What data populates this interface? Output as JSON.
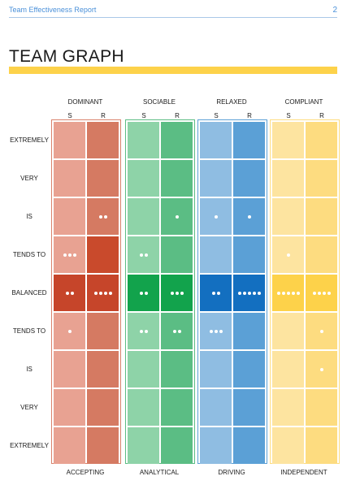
{
  "header": {
    "title": "Team Effectiveness Report",
    "page_number": "2"
  },
  "page_title": "TEAM GRAPH",
  "columns": [
    {
      "name": "DOMINANT",
      "bottom": "ACCEPTING",
      "color_light": "#e8a292",
      "color_dark": "#d57a62",
      "frame": "#d9826b"
    },
    {
      "name": "SOCIABLE",
      "bottom": "ANALYTICAL",
      "color_light": "#8ed3a8",
      "color_dark": "#5bbd84",
      "frame": "#5bbd84"
    },
    {
      "name": "RELAXED",
      "bottom": "DRIVING",
      "color_light": "#8fbde2",
      "color_dark": "#5ba0d6",
      "frame": "#5ba0d6"
    },
    {
      "name": "COMPLIANT",
      "bottom": "INDEPENDENT",
      "color_light": "#fde4a0",
      "color_dark": "#fddc80",
      "frame": "#fddc80"
    }
  ],
  "sub_columns": [
    "S",
    "R"
  ],
  "rows": [
    "EXTREMELY",
    "VERY",
    "IS",
    "TENDS TO",
    "BALANCED",
    "TENDS TO",
    "IS",
    "VERY",
    "EXTREMELY"
  ],
  "highlight": {
    "dominant_dark": "#c94a2c",
    "dominant_balanced": "#c6452a",
    "sociable_balanced": "#12a34c",
    "relaxed_balanced": "#136fc0",
    "compliant_balanced": "#fdd24a"
  },
  "dot_counts": [
    [
      0,
      0,
      0,
      0,
      0,
      0,
      0,
      0
    ],
    [
      0,
      0,
      0,
      0,
      0,
      0,
      0,
      0
    ],
    [
      0,
      2,
      0,
      1,
      1,
      1,
      0,
      0
    ],
    [
      3,
      0,
      2,
      0,
      0,
      0,
      1,
      0
    ],
    [
      2,
      4,
      2,
      3,
      2,
      5,
      5,
      4
    ],
    [
      1,
      0,
      2,
      2,
      3,
      0,
      0,
      1
    ],
    [
      0,
      0,
      0,
      0,
      0,
      0,
      0,
      1
    ],
    [
      0,
      0,
      0,
      0,
      0,
      0,
      0,
      0
    ],
    [
      0,
      0,
      0,
      0,
      0,
      0,
      0,
      0
    ]
  ]
}
